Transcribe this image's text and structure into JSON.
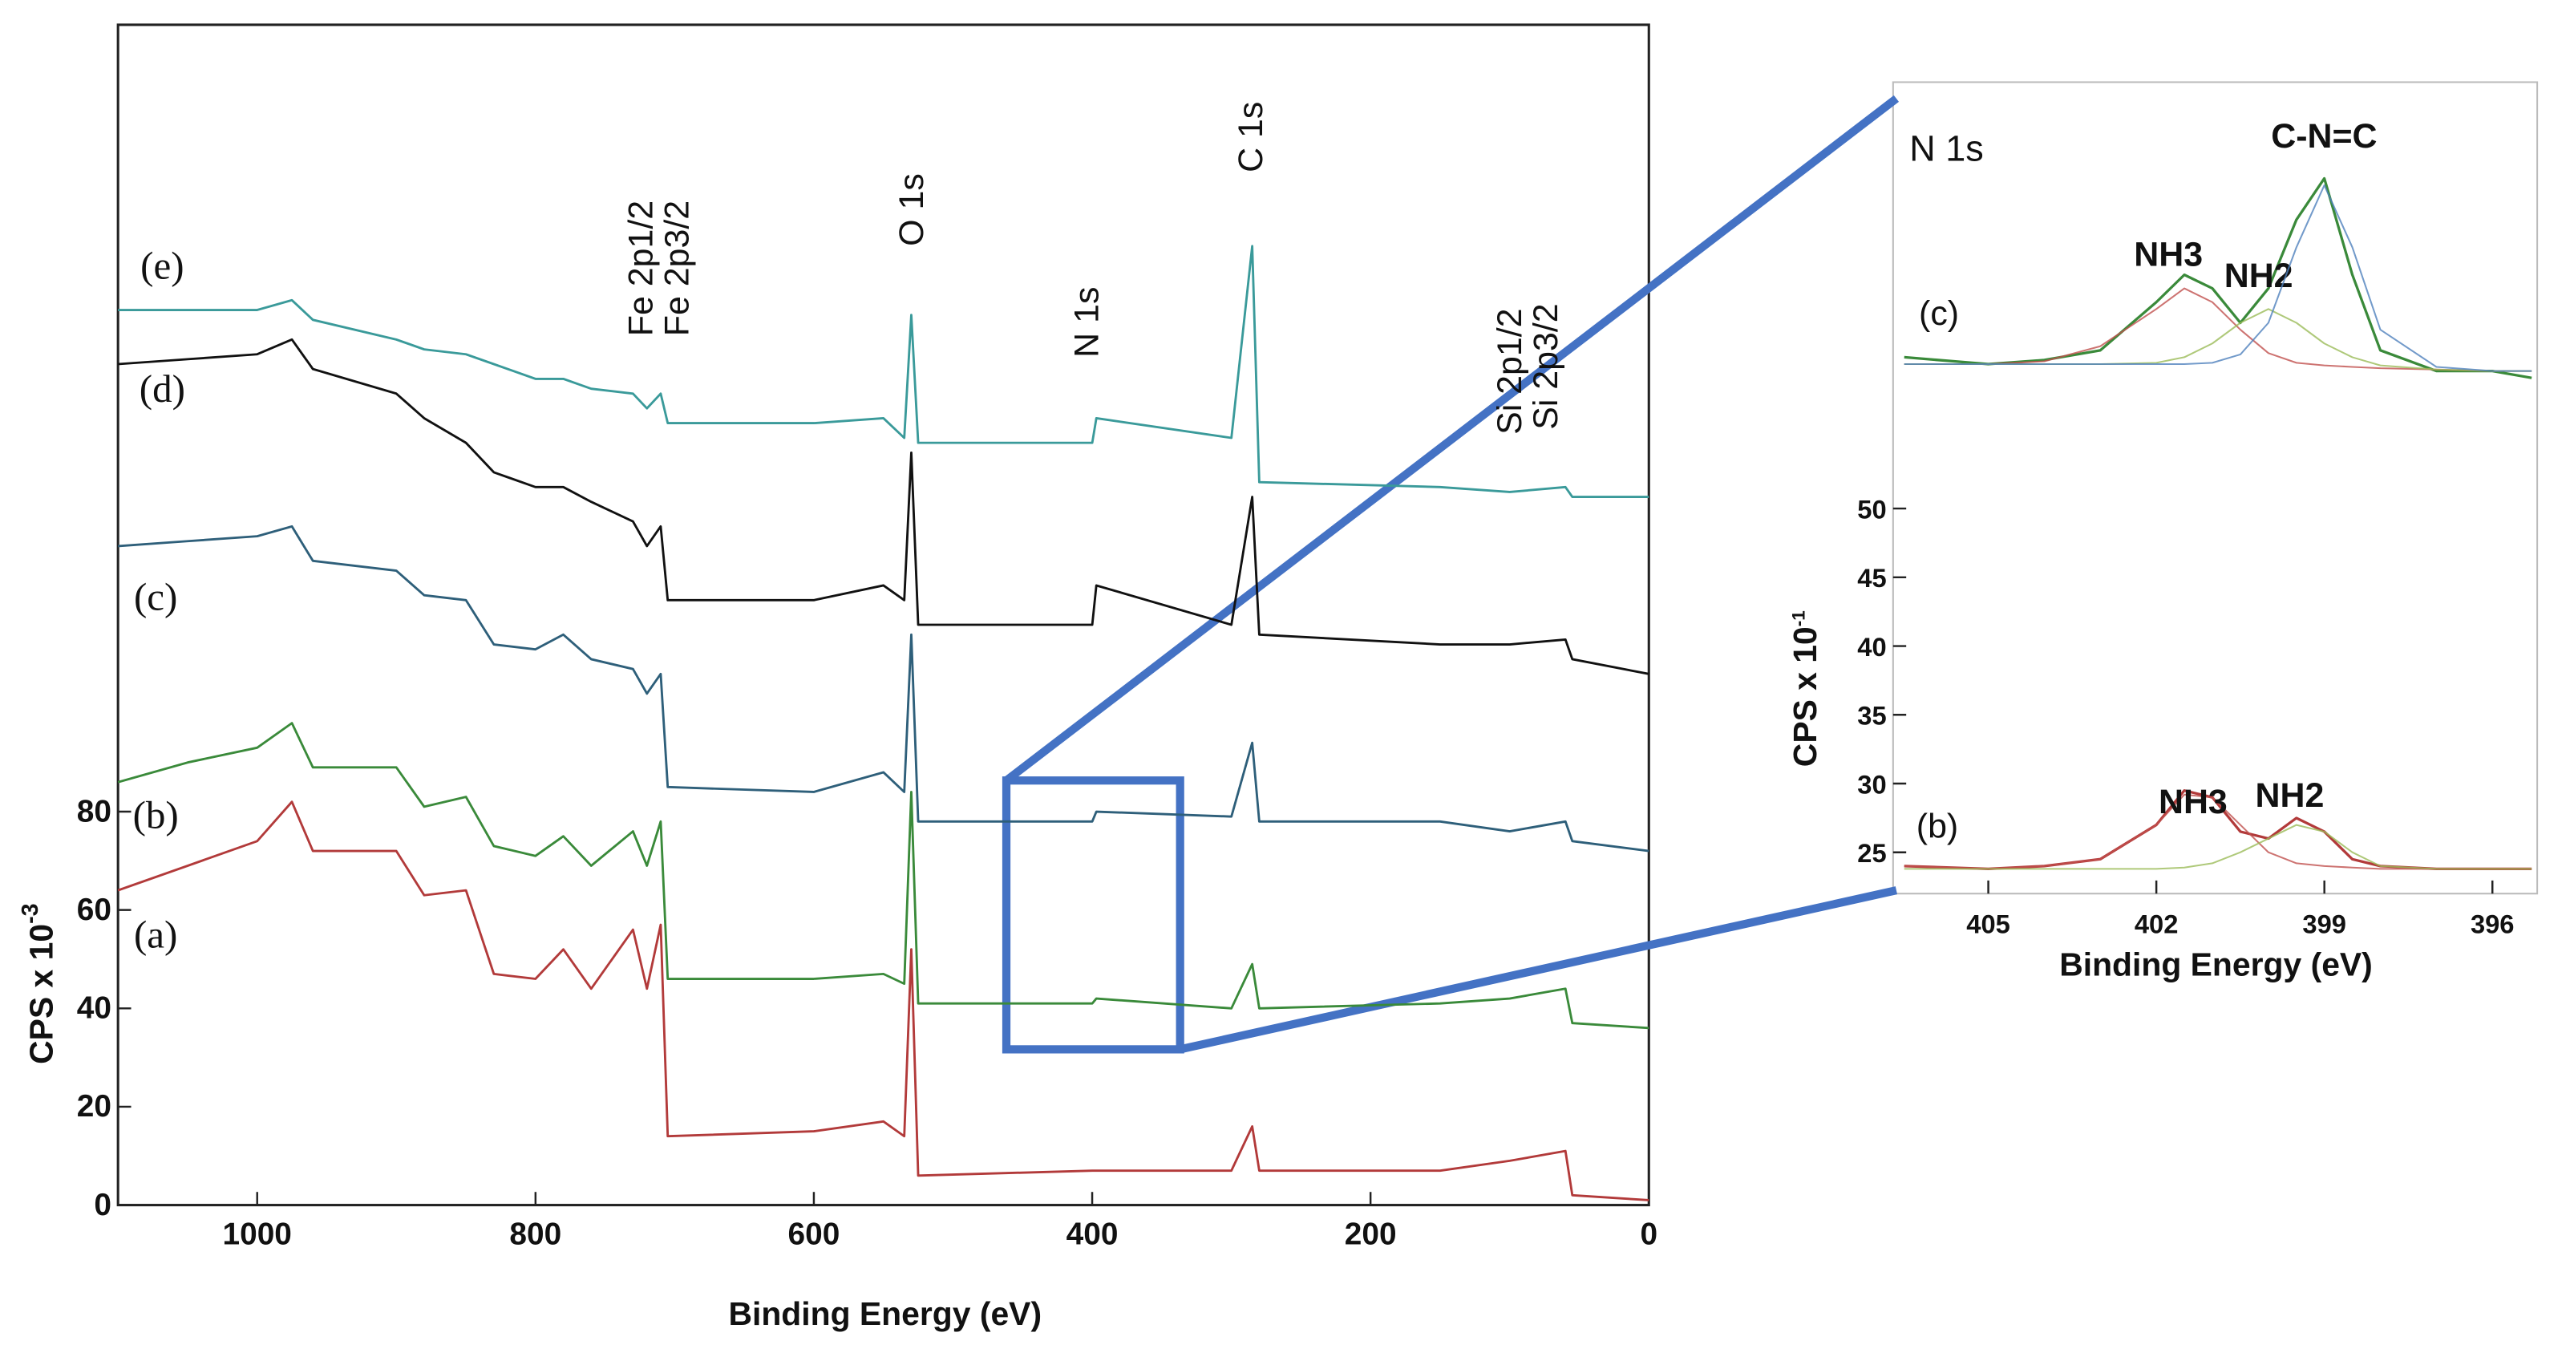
{
  "chart_data": [
    {
      "type": "line",
      "x_label": "Binding Energy (eV)",
      "y_label": "CPS x 10",
      "y_label_exponent": "-3",
      "xlim": [
        1100,
        0
      ],
      "ylim": [
        0,
        240
      ],
      "xticks": [
        1000,
        800,
        600,
        400,
        200,
        0
      ],
      "yticks": [
        0,
        20,
        40,
        60,
        80
      ],
      "x": [
        1100,
        1050,
        1000,
        975,
        960,
        900,
        880,
        850,
        830,
        800,
        780,
        760,
        730,
        720,
        710,
        705,
        600,
        550,
        535,
        530,
        525,
        400,
        397,
        300,
        285,
        280,
        150,
        100,
        60,
        55,
        0
      ],
      "series": [
        {
          "name": "(a)",
          "color": "#b23a3a",
          "values": [
            64,
            69,
            74,
            82,
            72,
            72,
            63,
            64,
            47,
            46,
            52,
            44,
            56,
            44,
            57,
            14,
            15,
            17,
            14,
            52,
            6,
            7,
            7,
            7,
            16,
            7,
            7,
            9,
            11,
            2,
            1
          ]
        },
        {
          "name": "(b)",
          "color": "#3a8a3a",
          "values": [
            86,
            90,
            93,
            98,
            89,
            89,
            81,
            83,
            73,
            71,
            75,
            69,
            76,
            69,
            78,
            46,
            46,
            47,
            45,
            84,
            41,
            41,
            42,
            40,
            49,
            40,
            41,
            42,
            44,
            37,
            36
          ]
        },
        {
          "name": "(c)",
          "color": "#2e5f7a",
          "values": [
            134,
            135,
            136,
            138,
            131,
            129,
            124,
            123,
            114,
            113,
            116,
            111,
            109,
            104,
            108,
            85,
            84,
            88,
            84,
            116,
            78,
            78,
            80,
            79,
            94,
            78,
            78,
            76,
            78,
            74,
            72
          ]
        },
        {
          "name": "(d)",
          "color": "#111111",
          "values": [
            171,
            172,
            173,
            176,
            170,
            165,
            160,
            155,
            149,
            146,
            146,
            143,
            139,
            134,
            138,
            123,
            123,
            126,
            123,
            153,
            118,
            118,
            126,
            118,
            144,
            116,
            114,
            114,
            115,
            111,
            108
          ]
        },
        {
          "name": "(e)",
          "color": "#3a9a9a",
          "values": [
            182,
            182,
            182,
            184,
            180,
            176,
            174,
            173,
            171,
            168,
            168,
            166,
            165,
            162,
            165,
            159,
            159,
            160,
            156,
            181,
            155,
            155,
            160,
            156,
            195,
            147,
            146,
            145,
            146,
            144,
            144
          ]
        }
      ],
      "annotations": [
        "Fe 2p1/2",
        "Fe 2p3/2",
        "O 1s",
        "N 1s",
        "C 1s",
        "Si 2p1/2",
        "Si 2p3/2"
      ]
    },
    {
      "type": "line",
      "title": "N 1s",
      "x_label": "Binding Energy (eV)",
      "y_label": "CPS x 10",
      "y_label_exponent": "-1",
      "xlim": [
        406.7,
        395.2
      ],
      "ylim": [
        22,
        81
      ],
      "xticks": [
        405,
        402,
        399,
        396
      ],
      "yticks": [
        25,
        30,
        35,
        40,
        45,
        50
      ],
      "x": [
        406.5,
        405,
        404,
        403,
        402,
        401.5,
        401,
        400.5,
        400,
        399.5,
        399,
        398.5,
        398,
        397,
        396,
        395.3
      ],
      "series": [
        {
          "name": "(c)",
          "color": "#3a8a3a",
          "values": [
            61,
            60.5,
            60.8,
            61.5,
            65,
            67,
            66,
            63.5,
            66,
            71,
            74,
            67,
            61.5,
            60,
            60,
            59.5
          ]
        },
        {
          "name": "NH3",
          "color": "#c0504d",
          "values": [
            60.5,
            60.5,
            60.7,
            61.8,
            64.5,
            66,
            65,
            63,
            61.3,
            60.6,
            60.4,
            60.3,
            60.2,
            60.1,
            60,
            60
          ]
        },
        {
          "name": "NH2",
          "color": "#9bbb59",
          "values": [
            60.5,
            60.5,
            60.5,
            60.5,
            60.6,
            61,
            62,
            63.5,
            64.5,
            63.5,
            62,
            61,
            60.4,
            60.1,
            60,
            60
          ]
        },
        {
          "name": "C-N=C",
          "color": "#4f81bd",
          "values": [
            60.5,
            60.5,
            60.5,
            60.5,
            60.5,
            60.5,
            60.6,
            61.2,
            63.5,
            69,
            73.5,
            69,
            63,
            60.3,
            60,
            60
          ]
        },
        {
          "name": "(b)",
          "color": "#b23a3a",
          "values": [
            24,
            23.8,
            24,
            24.5,
            27,
            29.5,
            29,
            26.5,
            26,
            27.5,
            26.5,
            24.5,
            24,
            23.8,
            23.8,
            23.8
          ]
        },
        {
          "name": "NH3",
          "color": "#c0504d",
          "values": [
            24,
            23.8,
            24,
            24.5,
            27,
            29.2,
            29,
            27,
            25,
            24.2,
            24,
            23.9,
            23.8,
            23.8,
            23.8,
            23.8
          ]
        },
        {
          "name": "NH2",
          "color": "#9bbb59",
          "values": [
            23.8,
            23.8,
            23.8,
            23.8,
            23.8,
            23.9,
            24.2,
            25,
            26,
            27,
            26.5,
            25,
            24,
            23.8,
            23.8,
            23.8
          ]
        }
      ]
    }
  ]
}
